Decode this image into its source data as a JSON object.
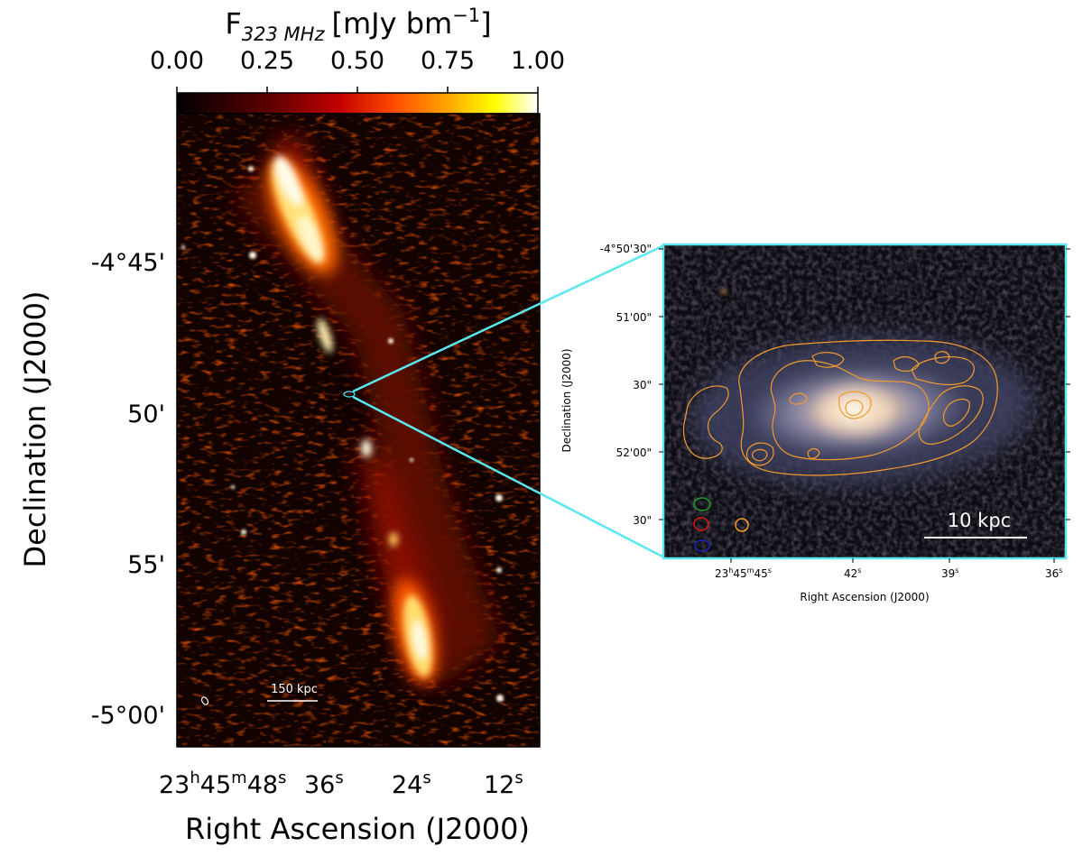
{
  "left_panel": {
    "colorbar": {
      "label_main": "F",
      "label_sub": "323 MHz",
      "label_units": "[mJy bm",
      "label_exp": "−1",
      "label_close": "]",
      "ticks": [
        "0.00",
        "0.25",
        "0.50",
        "0.75",
        "1.00"
      ],
      "colormap": "afmhot"
    },
    "x_axis": {
      "label": "Right Ascension (J2000)",
      "ticks": [
        {
          "h": "23",
          "hs": "h",
          "m": "45",
          "ms": "m",
          "s": "48",
          "ss": "s"
        },
        {
          "s": "36",
          "ss": "s"
        },
        {
          "s": "24",
          "ss": "s"
        },
        {
          "s": "12",
          "ss": "s"
        }
      ]
    },
    "y_axis": {
      "label": "Declination (J2000)",
      "ticks": [
        "-4°45'",
        "50'",
        "55'",
        "-5°00'"
      ]
    },
    "scale_bar": "150 kpc"
  },
  "right_panel": {
    "x_axis": {
      "label": "Right Ascension (J2000)",
      "ticks": [
        {
          "h": "23",
          "hs": "h",
          "m": "45",
          "ms": "m",
          "s": "45",
          "ss": "s"
        },
        {
          "s": "42",
          "ss": "s"
        },
        {
          "s": "39",
          "ss": "s"
        },
        {
          "s": "36",
          "ss": "s"
        }
      ]
    },
    "y_axis": {
      "label": "Declination (J2000)",
      "ticks": [
        "-4°50'30\"",
        "51'00\"",
        "30\"",
        "52'00\"",
        "30\""
      ]
    },
    "scale_bar": "10 kpc",
    "beam_colors": [
      "#1e9e2a",
      "#e01818",
      "#2020c0",
      "#f5a030"
    ],
    "contour_color": "#f29a2e",
    "frame_color": "#5ae8f0"
  }
}
